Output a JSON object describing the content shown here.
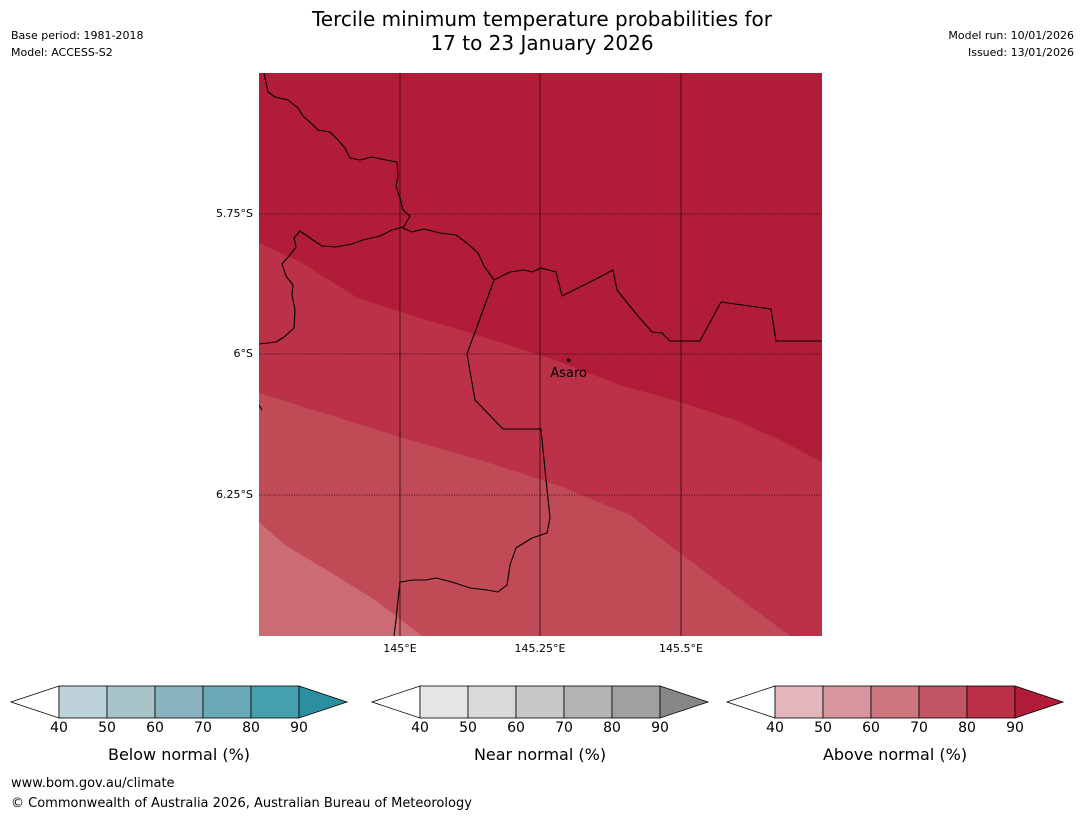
{
  "title": {
    "line1": "Tercile minimum temperature probabilities for",
    "line2": "17 to 23 January 2026"
  },
  "meta": {
    "base_period": "Base period: 1981-2018",
    "model": "Model: ACCESS-S2",
    "model_run": "Model run: 10/01/2026",
    "issued": "Issued: 13/01/2026"
  },
  "map": {
    "lat_labels": [
      "5.75°S",
      "6°S",
      "6.25°S"
    ],
    "lon_labels": [
      "145°E",
      "145.25°E",
      "145.5°E"
    ],
    "place": "Asaro",
    "bounds": {
      "lon_min": 144.75,
      "lon_max": 145.75,
      "lat_min": -6.5,
      "lat_max": -5.5
    },
    "gridlines": {
      "lat": [
        -5.75,
        -6.0,
        -6.25
      ],
      "lon": [
        145.0,
        145.25,
        145.5
      ]
    },
    "place_coords": {
      "lon": 145.3,
      "lat": -6.01
    },
    "colors": {
      "gt80": "#b11d38",
      "70to80": "#ba3148",
      "60to70": "#c04b56",
      "50to60": "#cc6b73"
    }
  },
  "colorbars": [
    {
      "title": "Below normal (%)",
      "ticks": [
        "40",
        "50",
        "60",
        "70",
        "80",
        "90"
      ],
      "colors": [
        "#bed3d9",
        "#a7c4c9",
        "#89b4bf",
        "#6aaab8",
        "#45a0ae"
      ],
      "tip": "#2b8f9f"
    },
    {
      "title": "Near normal (%)",
      "ticks": [
        "40",
        "50",
        "60",
        "70",
        "80",
        "90"
      ],
      "colors": [
        "#e6e6e6",
        "#d9d9d9",
        "#c8c8c8",
        "#b4b4b4",
        "#a0a0a0"
      ],
      "tip": "#878787"
    },
    {
      "title": "Above normal (%)",
      "ticks": [
        "40",
        "50",
        "60",
        "70",
        "80",
        "90"
      ],
      "colors": [
        "#e2b6bc",
        "#d8959d",
        "#cc767d",
        "#c25563",
        "#ba3148"
      ],
      "tip": "#b11d38"
    }
  ],
  "footer": {
    "url": "www.bom.gov.au/climate",
    "copyright": "© Commonwealth of Australia 2026, Australian Bureau of Meteorology"
  }
}
